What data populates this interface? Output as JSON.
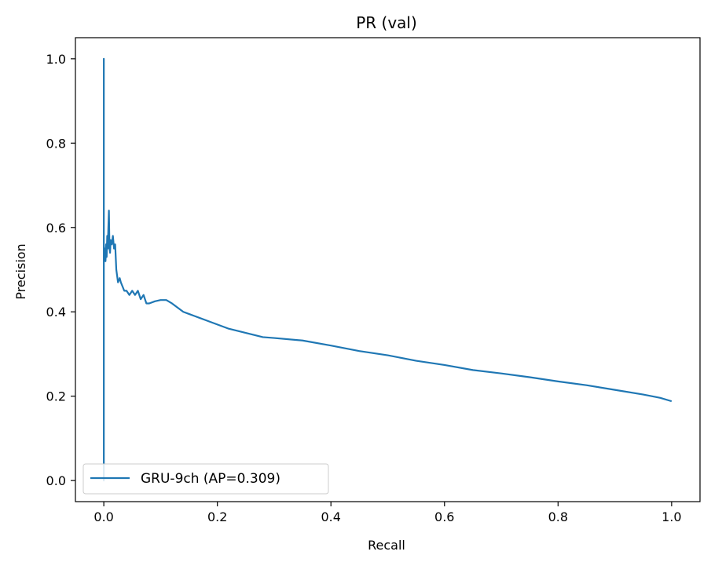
{
  "chart_data": {
    "type": "line",
    "title": "PR (val)",
    "xlabel": "Recall",
    "ylabel": "Precision",
    "xlim": [
      -0.05,
      1.05
    ],
    "ylim": [
      -0.05,
      1.05
    ],
    "x_ticks": [
      0.0,
      0.2,
      0.4,
      0.6,
      0.8,
      1.0
    ],
    "x_tick_labels": [
      "0.0",
      "0.2",
      "0.4",
      "0.6",
      "0.8",
      "1.0"
    ],
    "y_ticks": [
      0.0,
      0.2,
      0.4,
      0.6,
      0.8,
      1.0
    ],
    "y_tick_labels": [
      "0.0",
      "0.2",
      "0.4",
      "0.6",
      "0.8",
      "1.0"
    ],
    "grid": false,
    "legend_position": "lower-left",
    "series": [
      {
        "name": "GRU-9ch (AP=0.309)",
        "color": "#1f77b4",
        "x": [
          0.0,
          0.0,
          0.0,
          0.0,
          0.0,
          0.0,
          0.001,
          0.002,
          0.003,
          0.004,
          0.005,
          0.006,
          0.007,
          0.008,
          0.009,
          0.01,
          0.011,
          0.012,
          0.014,
          0.016,
          0.018,
          0.02,
          0.022,
          0.025,
          0.028,
          0.03,
          0.033,
          0.036,
          0.04,
          0.045,
          0.05,
          0.055,
          0.06,
          0.065,
          0.07,
          0.075,
          0.08,
          0.09,
          0.1,
          0.11,
          0.12,
          0.13,
          0.14,
          0.15,
          0.16,
          0.18,
          0.2,
          0.22,
          0.25,
          0.28,
          0.3,
          0.35,
          0.4,
          0.45,
          0.5,
          0.55,
          0.6,
          0.65,
          0.7,
          0.75,
          0.8,
          0.85,
          0.9,
          0.95,
          0.98,
          1.0
        ],
        "y": [
          0.03,
          1.0,
          0.0,
          0.3,
          0.45,
          0.56,
          0.52,
          0.55,
          0.52,
          0.56,
          0.53,
          0.58,
          0.55,
          0.6,
          0.64,
          0.55,
          0.54,
          0.57,
          0.56,
          0.58,
          0.55,
          0.56,
          0.5,
          0.47,
          0.48,
          0.47,
          0.46,
          0.45,
          0.45,
          0.44,
          0.45,
          0.44,
          0.45,
          0.43,
          0.44,
          0.42,
          0.42,
          0.425,
          0.428,
          0.428,
          0.42,
          0.41,
          0.4,
          0.395,
          0.39,
          0.38,
          0.37,
          0.36,
          0.35,
          0.34,
          0.338,
          0.332,
          0.32,
          0.307,
          0.297,
          0.284,
          0.274,
          0.262,
          0.254,
          0.245,
          0.235,
          0.226,
          0.215,
          0.204,
          0.196,
          0.188
        ]
      }
    ]
  }
}
